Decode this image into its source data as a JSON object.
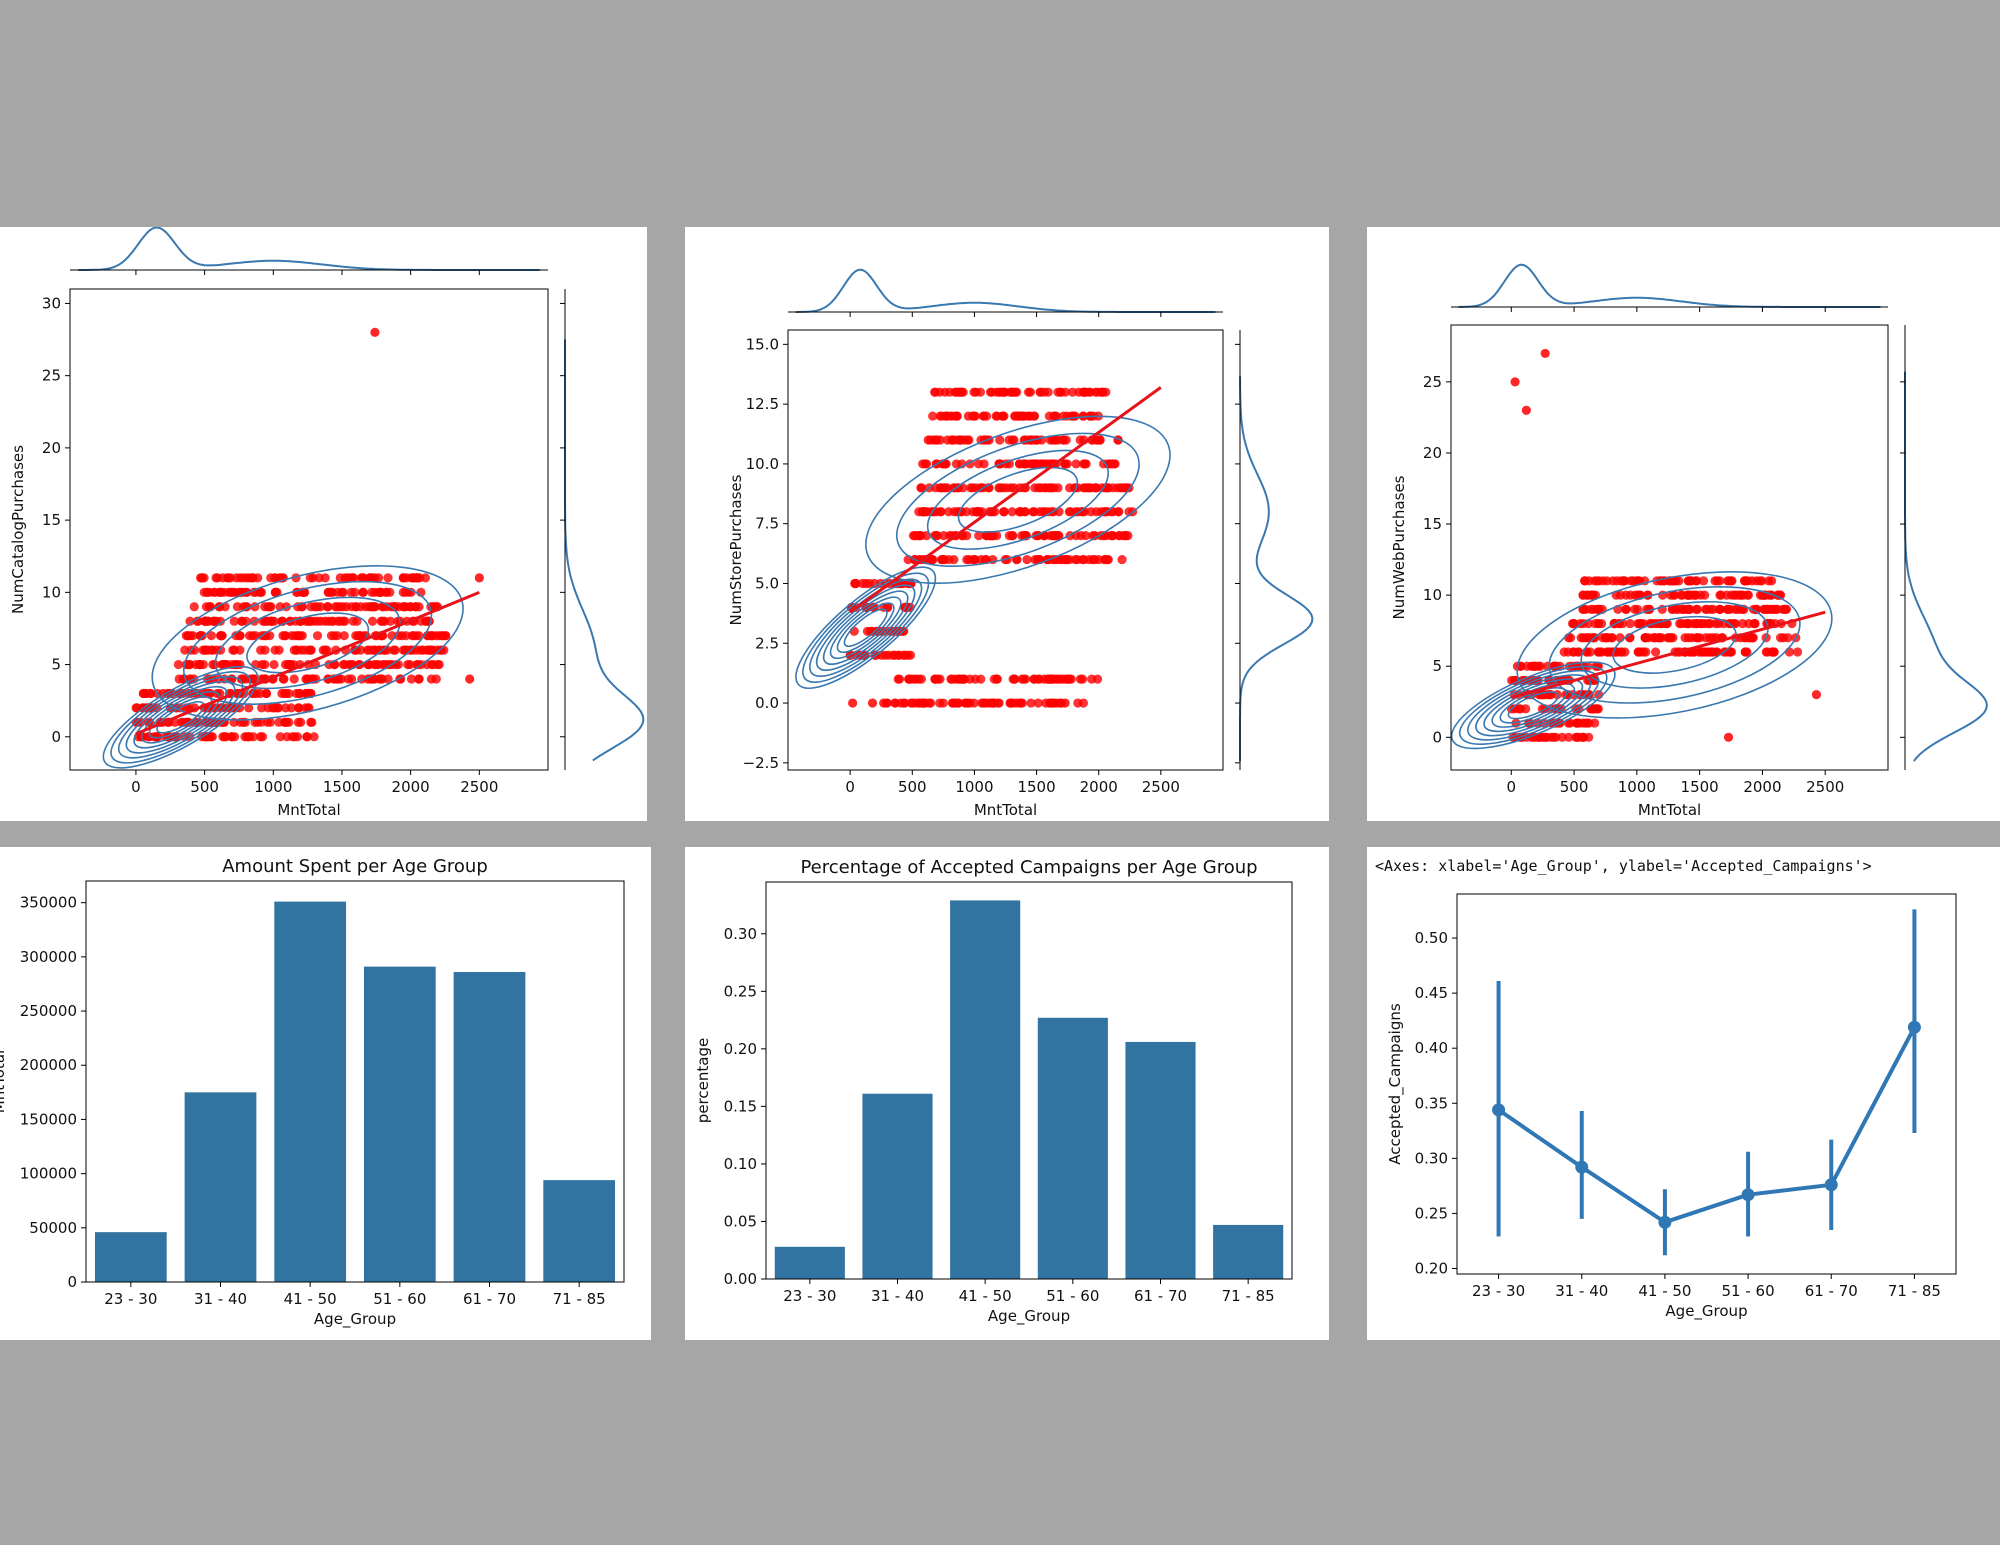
{
  "colors": {
    "bar": "#3274a1",
    "kde": "#3a78b0",
    "point": "#ff0000",
    "regline": "#e8121a",
    "line": "#2f78b5",
    "background": "#a6a6a6"
  },
  "chart_data": [
    {
      "id": "catalog",
      "type": "scatter",
      "xlabel": "MntTotal",
      "ylabel": "NumCatalogPurchases",
      "xlim": [
        -480,
        3000
      ],
      "ylim": [
        -2.3,
        31
      ],
      "xticks": [
        0,
        500,
        1000,
        1500,
        2000,
        2500
      ],
      "yticks": [
        0,
        5,
        10,
        15,
        20,
        25,
        30
      ],
      "ytick_labels": [
        "0",
        "5",
        "10",
        "15",
        "20",
        "25",
        "30"
      ],
      "regression": {
        "x": [
          0,
          2500
        ],
        "y": [
          0.2,
          10.0
        ]
      },
      "outliers": [
        {
          "x": 1740,
          "y": 28
        },
        {
          "x": 2430,
          "y": 4
        },
        {
          "x": 2500,
          "y": 11
        }
      ],
      "ymax": 11,
      "lower_cluster": {
        "x0": 0,
        "x1": 1300,
        "y0": 0,
        "y1": 3
      },
      "upper_cluster": {
        "x0": 200,
        "x1": 2300,
        "y0": 2,
        "y1": 11
      },
      "trend": {
        "a": 0.5,
        "b": 0.0042
      },
      "marginal_x": {
        "peak": 150,
        "second": 1000
      },
      "marginal_y": {
        "peak": 1,
        "second": 6
      }
    },
    {
      "id": "store",
      "type": "scatter",
      "xlabel": "MntTotal",
      "ylabel": "NumStorePurchases",
      "xlim": [
        -500,
        3000
      ],
      "ylim": [
        -2.8,
        15.6
      ],
      "xticks": [
        0,
        500,
        1000,
        1500,
        2000,
        2500
      ],
      "yticks": [
        -2.5,
        0,
        2.5,
        5,
        7.5,
        10,
        12.5,
        15
      ],
      "ytick_labels": [
        "−2.5",
        "0.0",
        "2.5",
        "5.0",
        "7.5",
        "10.0",
        "12.5",
        "15.0"
      ],
      "regression": {
        "x": [
          0,
          2500
        ],
        "y": [
          3.8,
          13.2
        ]
      },
      "outliers": [
        {
          "x": 20,
          "y": 0
        },
        {
          "x": 180,
          "y": 0
        },
        {
          "x": 270,
          "y": 0
        },
        {
          "x": 1730,
          "y": 0
        }
      ],
      "ymax": 13,
      "lower_cluster": {
        "x0": 0,
        "x1": 500,
        "y0": 2,
        "y1": 5
      },
      "upper_cluster": {
        "x0": 400,
        "x1": 2300,
        "y0": 4,
        "y1": 13
      },
      "trend": {
        "a": 4.0,
        "b": 0.0036
      },
      "marginal_x": {
        "peak": 80,
        "second": 1000
      },
      "marginal_y": {
        "peak": 3.5,
        "second": 8
      }
    },
    {
      "id": "web",
      "type": "scatter",
      "xlabel": "MntTotal",
      "ylabel": "NumWebPurchases",
      "xlim": [
        -480,
        3000
      ],
      "ylim": [
        -2.3,
        29
      ],
      "xticks": [
        0,
        500,
        1000,
        1500,
        2000,
        2500
      ],
      "yticks": [
        0,
        5,
        10,
        15,
        20,
        25
      ],
      "ytick_labels": [
        "0",
        "5",
        "10",
        "15",
        "20",
        "25"
      ],
      "regression": {
        "x": [
          0,
          2500
        ],
        "y": [
          2.8,
          8.8
        ]
      },
      "outliers": [
        {
          "x": 30,
          "y": 25
        },
        {
          "x": 120,
          "y": 23
        },
        {
          "x": 270,
          "y": 27
        },
        {
          "x": 1730,
          "y": 0
        },
        {
          "x": 2430,
          "y": 3
        }
      ],
      "ymax": 11,
      "lower_cluster": {
        "x0": 0,
        "x1": 700,
        "y0": 0,
        "y1": 5
      },
      "upper_cluster": {
        "x0": 300,
        "x1": 2300,
        "y0": 2,
        "y1": 11
      },
      "trend": {
        "a": 3.0,
        "b": 0.0024
      },
      "marginal_x": {
        "peak": 80,
        "second": 1000
      },
      "marginal_y": {
        "peak": 2,
        "second": 6
      }
    },
    {
      "id": "amount",
      "type": "bar",
      "title": "Amount Spent per Age Group",
      "xlabel": "Age_Group",
      "ylabel": "MntTotal",
      "categories": [
        "23 - 30",
        "31 - 40",
        "41 - 50",
        "51 - 60",
        "61 - 70",
        "71 - 85"
      ],
      "values": [
        46000,
        175000,
        351000,
        291000,
        286000,
        94000
      ],
      "ylim": [
        0,
        370000
      ],
      "yticks": [
        0,
        50000,
        100000,
        150000,
        200000,
        250000,
        300000,
        350000
      ],
      "ytick_labels": [
        "0",
        "50000",
        "100000",
        "150000",
        "200000",
        "250000",
        "300000",
        "350000"
      ]
    },
    {
      "id": "percentage",
      "type": "bar",
      "title": "Percentage of Accepted Campaigns per Age Group",
      "xlabel": "Age_Group",
      "ylabel": "percentage",
      "categories": [
        "23 - 30",
        "31 - 40",
        "41 - 50",
        "51 - 60",
        "61 - 70",
        "71 - 85"
      ],
      "values": [
        0.028,
        0.161,
        0.329,
        0.227,
        0.206,
        0.047
      ],
      "ylim": [
        0,
        0.345
      ],
      "yticks": [
        0,
        0.05,
        0.1,
        0.15,
        0.2,
        0.25,
        0.3
      ],
      "ytick_labels": [
        "0.00",
        "0.05",
        "0.10",
        "0.15",
        "0.20",
        "0.25",
        "0.30"
      ]
    },
    {
      "id": "accepted",
      "type": "line",
      "repr": "<Axes: xlabel='Age_Group', ylabel='Accepted_Campaigns'>",
      "xlabel": "Age_Group",
      "ylabel": "Accepted_Campaigns",
      "categories": [
        "23 - 30",
        "31 - 40",
        "41 - 50",
        "51 - 60",
        "61 - 70",
        "71 - 85"
      ],
      "values": [
        0.344,
        0.292,
        0.242,
        0.267,
        0.276,
        0.419
      ],
      "ci_low": [
        0.229,
        0.245,
        0.212,
        0.229,
        0.235,
        0.323
      ],
      "ci_high": [
        0.461,
        0.343,
        0.272,
        0.306,
        0.317,
        0.526
      ],
      "ylim": [
        0.195,
        0.54
      ],
      "yticks": [
        0.2,
        0.25,
        0.3,
        0.35,
        0.4,
        0.45,
        0.5
      ],
      "ytick_labels": [
        "0.20",
        "0.25",
        "0.30",
        "0.35",
        "0.40",
        "0.45",
        "0.50"
      ]
    }
  ]
}
